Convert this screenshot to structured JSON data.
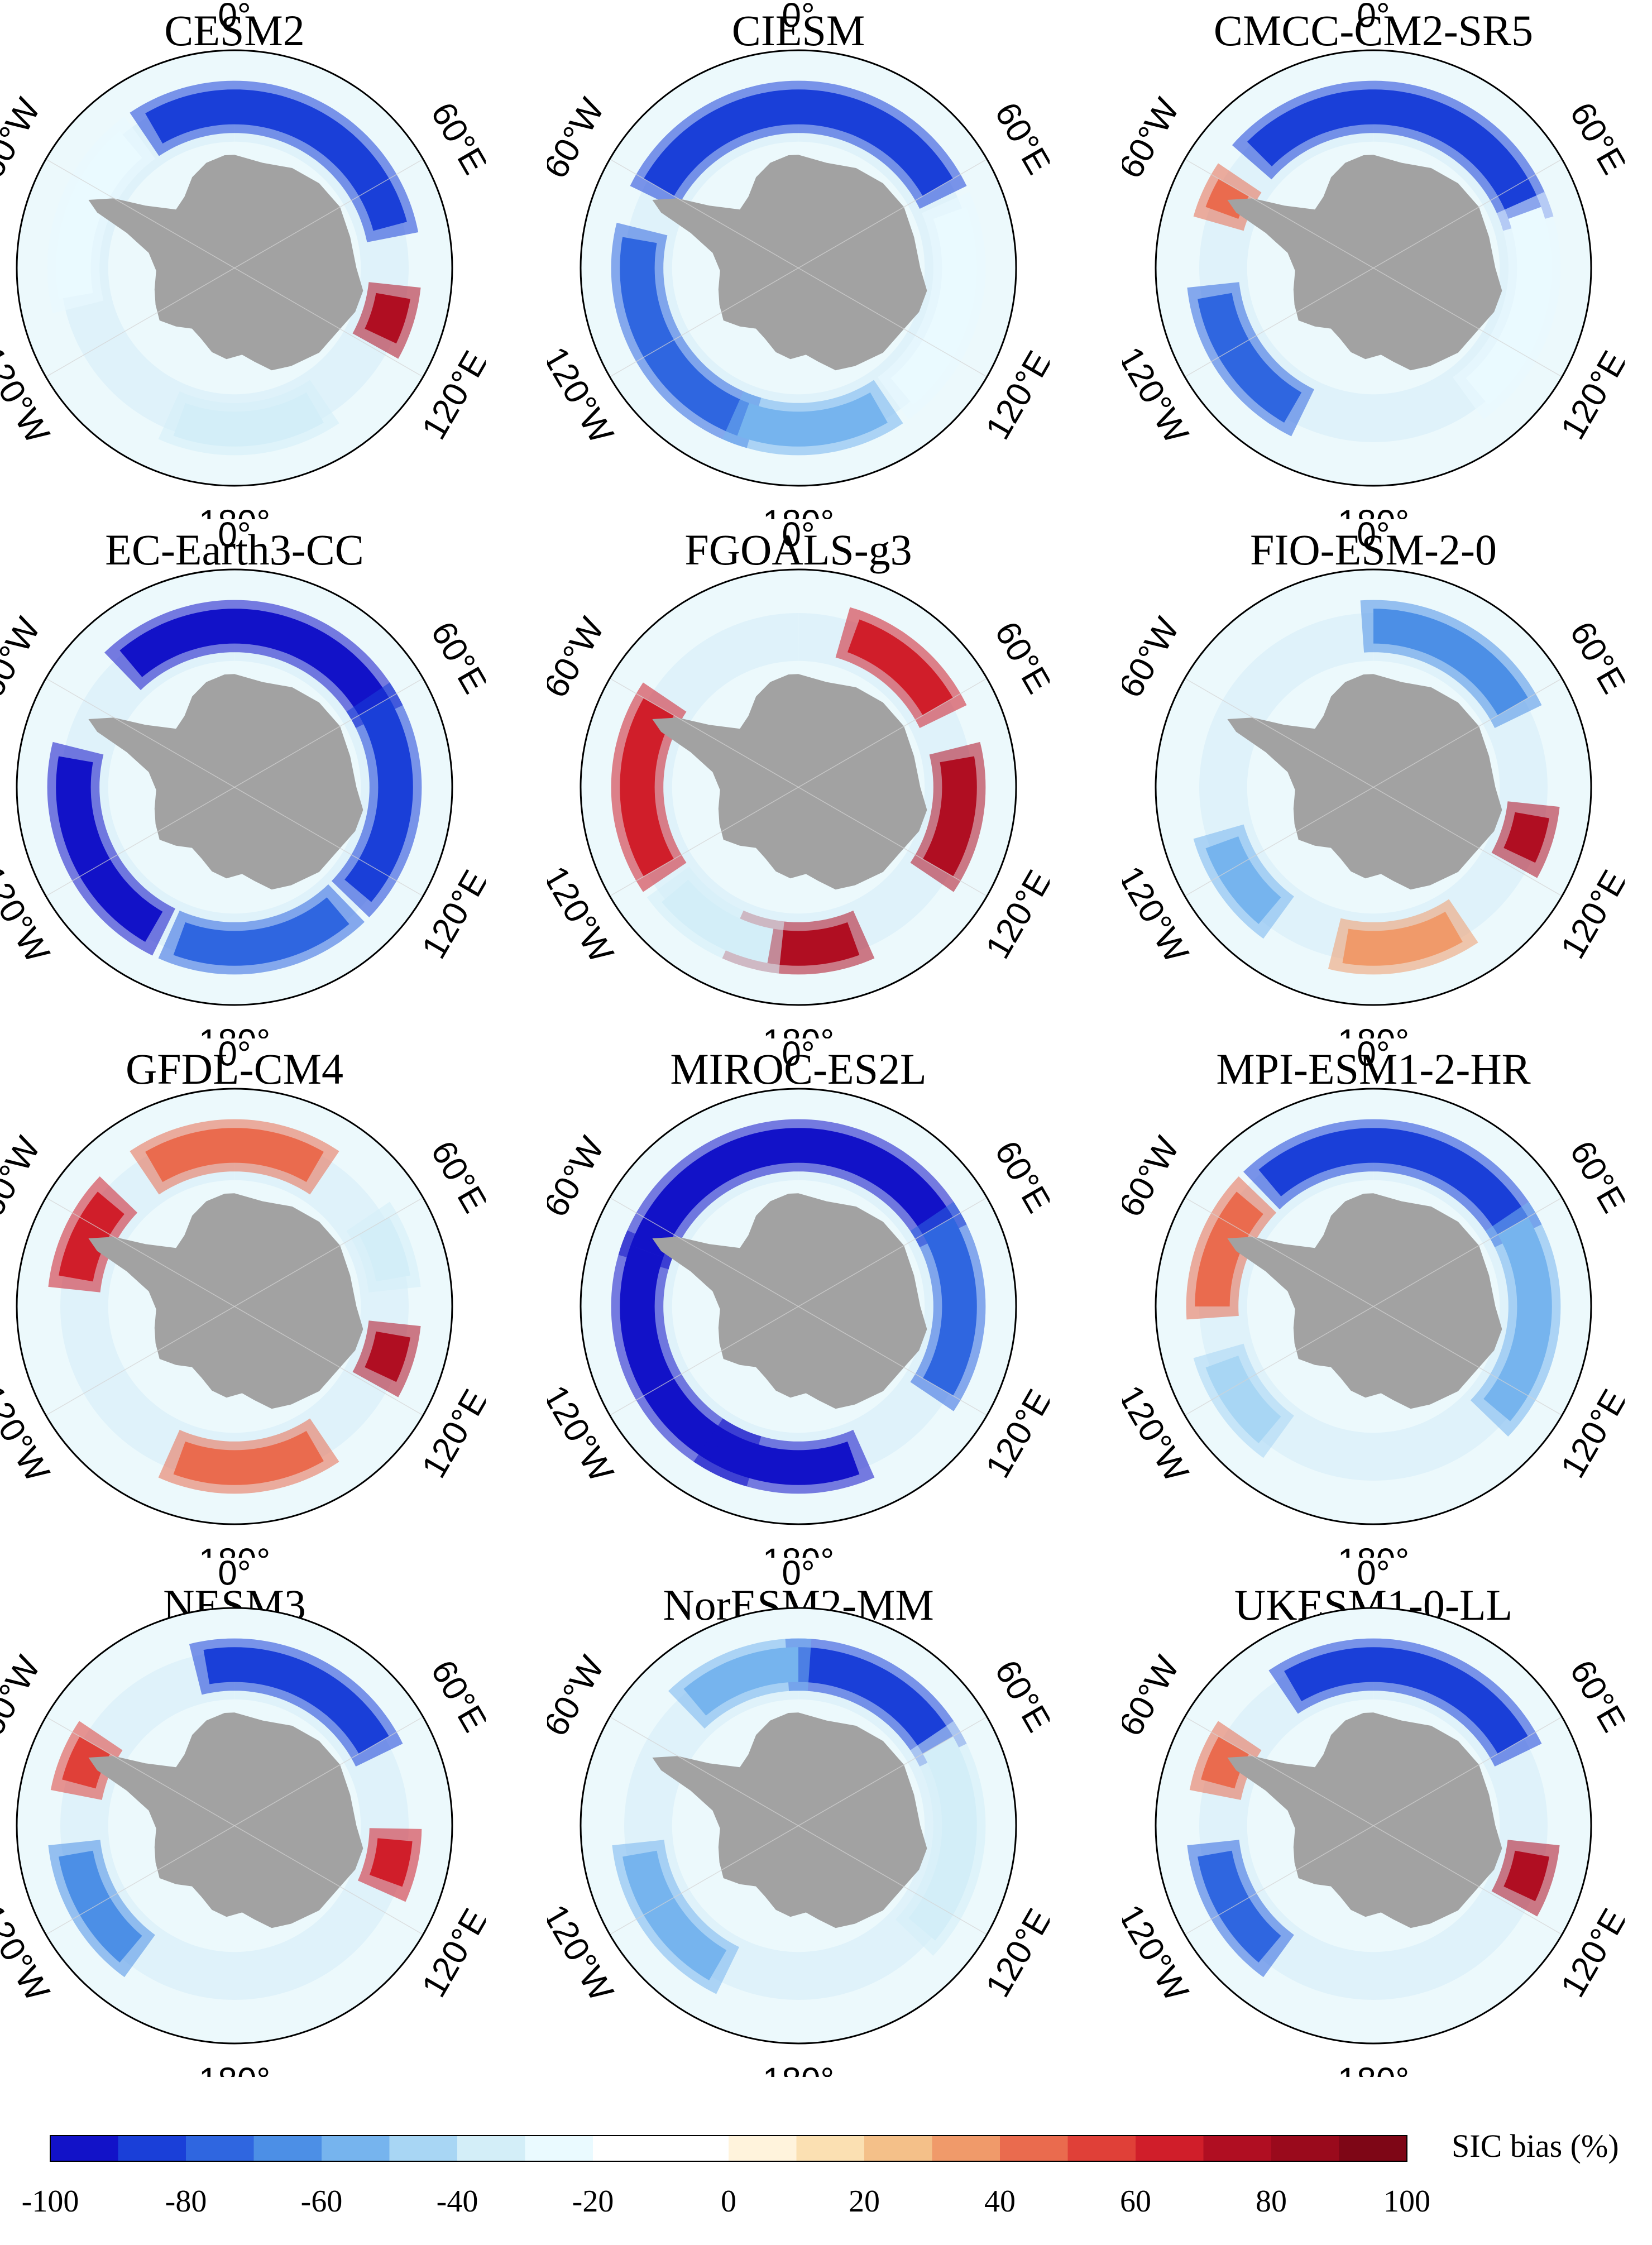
{
  "chart_data": {
    "type": "polar-contour-map",
    "variable": "Antarctic sea ice concentration (SIC) bias",
    "colorbar": {
      "label": "SIC bias (%)",
      "range": [
        -100,
        100
      ],
      "step": 10,
      "tick_labels": [
        "-100",
        "-80",
        "-60",
        "-40",
        "-20",
        "0",
        "20",
        "40",
        "60",
        "80",
        "100"
      ],
      "colors": [
        "#1212c8",
        "#1a3fd8",
        "#2f66e0",
        "#4c8fe6",
        "#76b4ee",
        "#a8d6f4",
        "#d3eef8",
        "#eafaff",
        "#ffffff",
        "#ffffff",
        "#fff3dc",
        "#fbe0b2",
        "#f4c089",
        "#f09a6a",
        "#ea6b4e",
        "#e04038",
        "#d01e2a",
        "#b00e22",
        "#9a0a1c",
        "#7e0616"
      ]
    },
    "longitude_labels": {
      "top": "0°",
      "upper_right": "60°E",
      "lower_right": "120°E",
      "bottom": "180°",
      "lower_left": "120°W",
      "upper_left": "60°W"
    },
    "panels": [
      {
        "model": "CESM2",
        "dominant_bias": "negative",
        "bias_band": [
          {
            "from_lon": -30,
            "to_lon": 75,
            "bias": -85
          },
          {
            "from_lon": -100,
            "to_lon": -40,
            "bias": -30
          },
          {
            "from_lon": 100,
            "to_lon": 115,
            "bias": 70
          },
          {
            "from_lon": 150,
            "to_lon": 200,
            "bias": -40
          }
        ]
      },
      {
        "model": "CIESM",
        "dominant_bias": "negative",
        "bias_band": [
          {
            "from_lon": -60,
            "to_lon": 60,
            "bias": -90
          },
          {
            "from_lon": -160,
            "to_lon": -80,
            "bias": -80
          },
          {
            "from_lon": 150,
            "to_lon": 200,
            "bias": -60
          },
          {
            "from_lon": 70,
            "to_lon": 140,
            "bias": -30
          }
        ]
      },
      {
        "model": "CMCC-CM2-SR5",
        "dominant_bias": "negative",
        "bias_band": [
          {
            "from_lon": -45,
            "to_lon": 70,
            "bias": -85
          },
          {
            "from_lon": -150,
            "to_lon": -100,
            "bias": -75
          },
          {
            "from_lon": 70,
            "to_lon": 140,
            "bias": -30
          },
          {
            "from_lon": -70,
            "to_lon": -60,
            "bias": 40
          }
        ]
      },
      {
        "model": "EC-Earth3-CC",
        "dominant_bias": "negative",
        "bias_band": [
          {
            "from_lon": -40,
            "to_lon": 60,
            "bias": -95
          },
          {
            "from_lon": -150,
            "to_lon": -80,
            "bias": -95
          },
          {
            "from_lon": 60,
            "to_lon": 130,
            "bias": -85
          },
          {
            "from_lon": 140,
            "to_lon": 200,
            "bias": -75
          }
        ]
      },
      {
        "model": "FGOALS-g3",
        "dominant_bias": "positive",
        "bias_band": [
          {
            "from_lon": 20,
            "to_lon": 60,
            "bias": 60
          },
          {
            "from_lon": 80,
            "to_lon": 120,
            "bias": 75
          },
          {
            "from_lon": -120,
            "to_lon": -60,
            "bias": 60
          },
          {
            "from_lon": 160,
            "to_lon": 200,
            "bias": 75
          },
          {
            "from_lon": -170,
            "to_lon": -130,
            "bias": -35
          }
        ]
      },
      {
        "model": "FIO-ESM-2-0",
        "dominant_bias": "negative",
        "bias_band": [
          {
            "from_lon": 0,
            "to_lon": 60,
            "bias": -70
          },
          {
            "from_lon": 100,
            "to_lon": 115,
            "bias": 70
          },
          {
            "from_lon": -140,
            "to_lon": -110,
            "bias": -60
          },
          {
            "from_lon": 150,
            "to_lon": 190,
            "bias": 30
          }
        ]
      },
      {
        "model": "GFDL-CM4",
        "dominant_bias": "positive",
        "bias_band": [
          {
            "from_lon": -30,
            "to_lon": 30,
            "bias": 45
          },
          {
            "from_lon": 100,
            "to_lon": 115,
            "bias": 70
          },
          {
            "from_lon": -80,
            "to_lon": -50,
            "bias": 60
          },
          {
            "from_lon": 150,
            "to_lon": 200,
            "bias": 45
          },
          {
            "from_lon": 60,
            "to_lon": 80,
            "bias": -40
          }
        ]
      },
      {
        "model": "MIROC-ES2L",
        "dominant_bias": "negative",
        "bias_band": [
          {
            "from_lon": -70,
            "to_lon": 60,
            "bias": -95
          },
          {
            "from_lon": -160,
            "to_lon": -70,
            "bias": -95
          },
          {
            "from_lon": 160,
            "to_lon": 210,
            "bias": -95
          },
          {
            "from_lon": 60,
            "to_lon": 120,
            "bias": -80
          }
        ]
      },
      {
        "model": "MPI-ESM1-2-HR",
        "dominant_bias": "negative",
        "bias_band": [
          {
            "from_lon": -40,
            "to_lon": 60,
            "bias": -85
          },
          {
            "from_lon": 60,
            "to_lon": 130,
            "bias": -55
          },
          {
            "from_lon": -90,
            "to_lon": -50,
            "bias": 45
          },
          {
            "from_lon": -140,
            "to_lon": -110,
            "bias": -45
          }
        ]
      },
      {
        "model": "NESM3",
        "dominant_bias": "negative",
        "bias_band": [
          {
            "from_lon": -10,
            "to_lon": 60,
            "bias": -85
          },
          {
            "from_lon": 95,
            "to_lon": 110,
            "bias": 60
          },
          {
            "from_lon": -140,
            "to_lon": -100,
            "bias": -65
          },
          {
            "from_lon": -75,
            "to_lon": -60,
            "bias": 50
          }
        ]
      },
      {
        "model": "NorESM2-MM",
        "dominant_bias": "negative",
        "bias_band": [
          {
            "from_lon": 0,
            "to_lon": 60,
            "bias": -90
          },
          {
            "from_lon": -40,
            "to_lon": 0,
            "bias": -55
          },
          {
            "from_lon": -150,
            "to_lon": -100,
            "bias": -55
          },
          {
            "from_lon": 60,
            "to_lon": 130,
            "bias": -35
          }
        ]
      },
      {
        "model": "UKESM1-0-LL",
        "dominant_bias": "negative",
        "bias_band": [
          {
            "from_lon": -30,
            "to_lon": 60,
            "bias": -85
          },
          {
            "from_lon": 100,
            "to_lon": 115,
            "bias": 75
          },
          {
            "from_lon": -140,
            "to_lon": -100,
            "bias": -80
          },
          {
            "from_lon": -75,
            "to_lon": -60,
            "bias": 45
          }
        ]
      }
    ]
  }
}
